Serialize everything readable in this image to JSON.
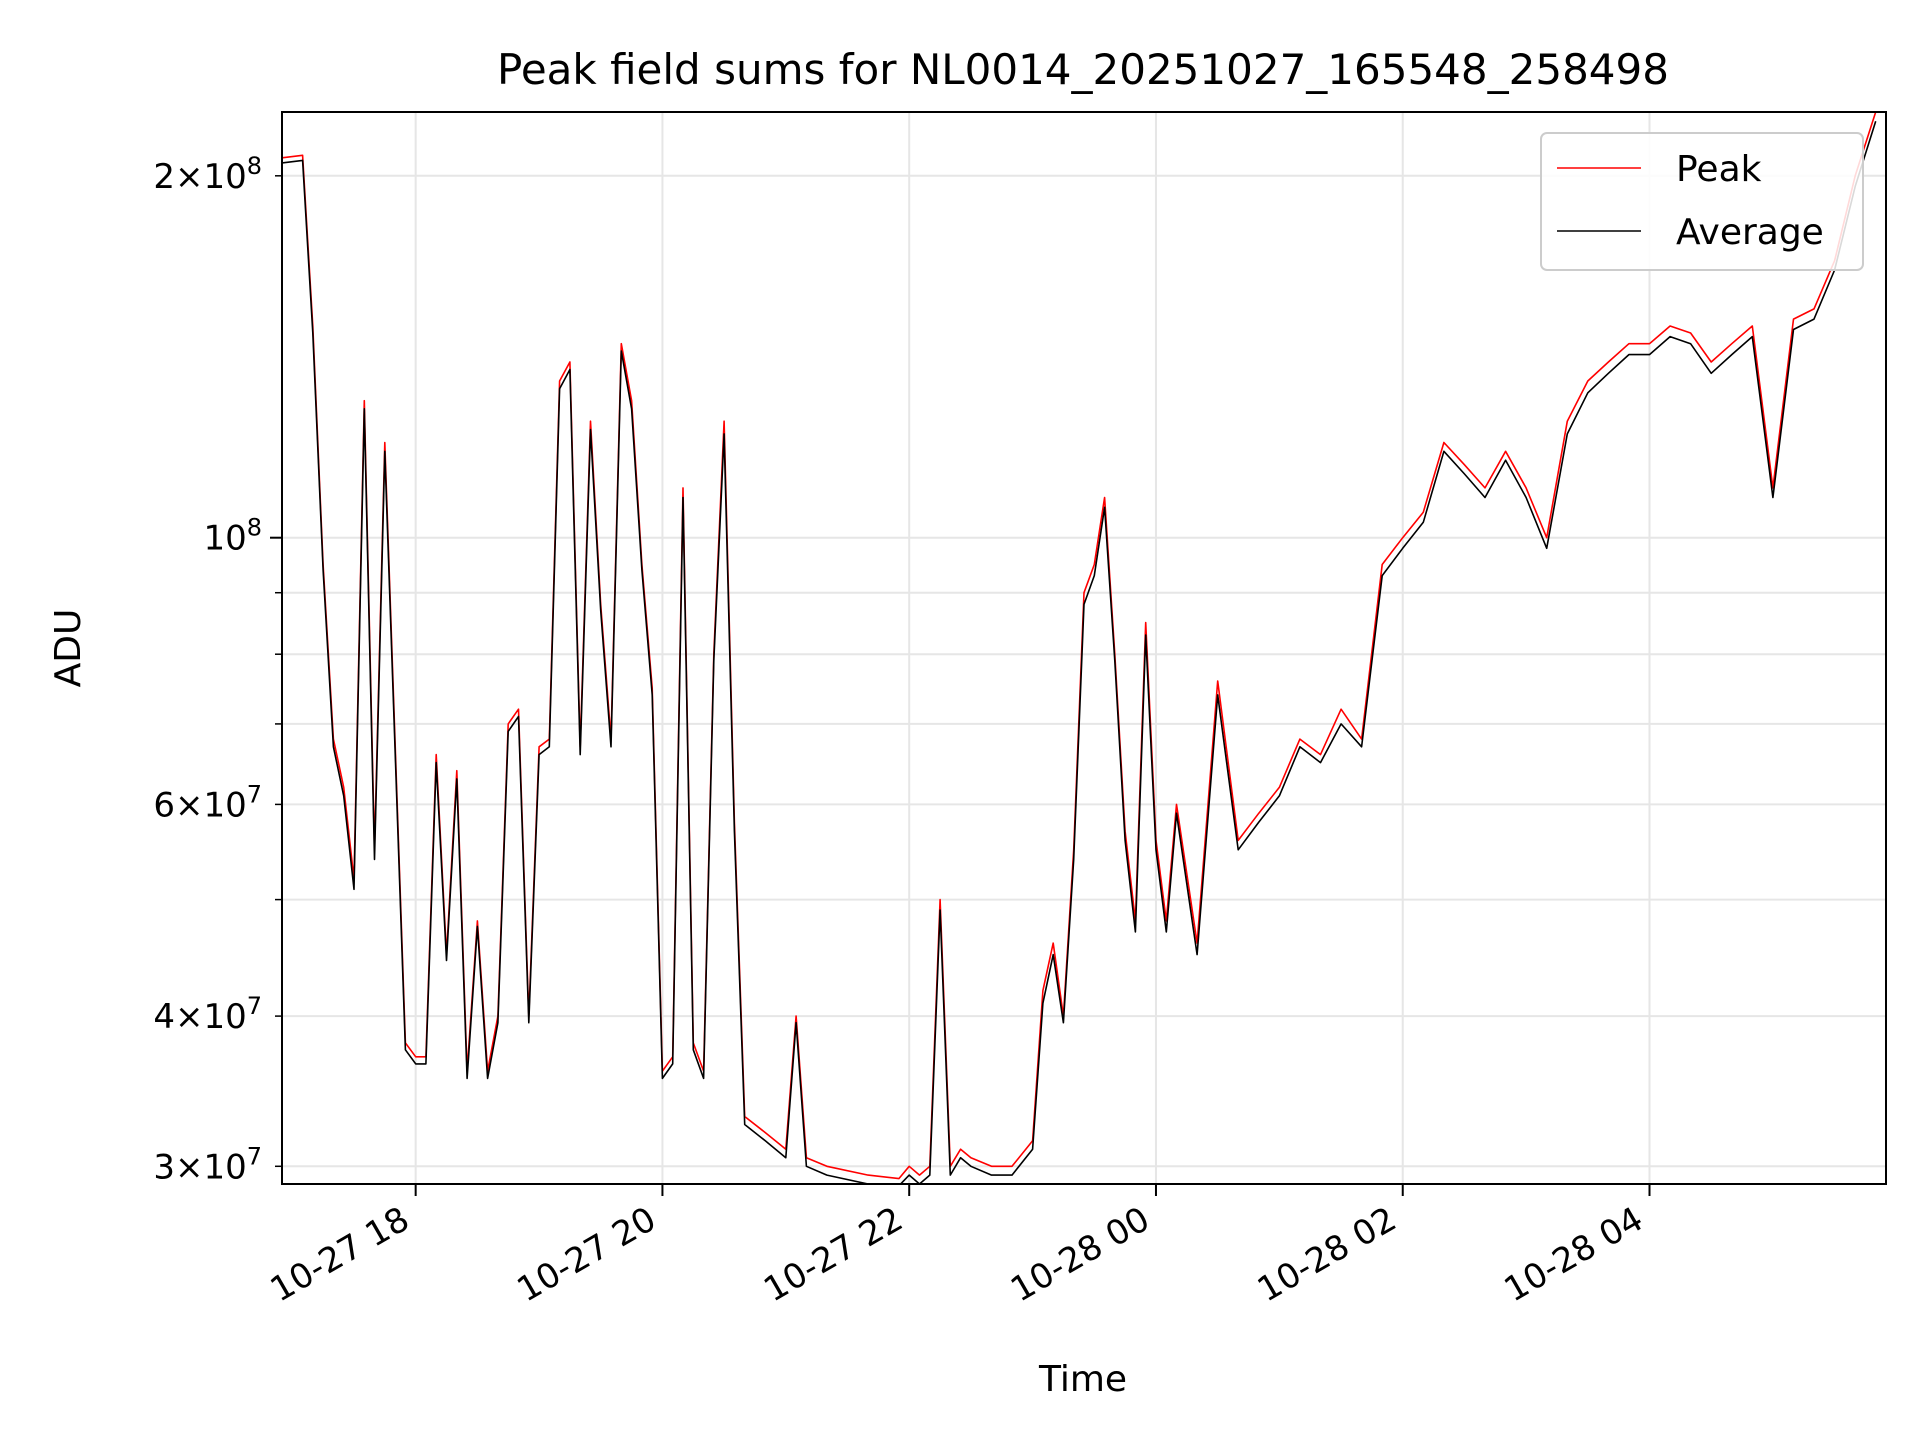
{
  "chart_data": {
    "type": "line",
    "title": "Peak field sums for NL0014_20251027_165548_258498",
    "xlabel": "Time",
    "ylabel": "ADU",
    "y_scale": "log",
    "ylim": [
      29000000,
      226000000
    ],
    "xlim": [
      "2025-10-27 16:55",
      "2025-10-28 05:55"
    ],
    "grid": true,
    "legend_position": "top-right",
    "x_ticks": [
      {
        "value": "2025-10-27 18:00",
        "label": "10-27 18"
      },
      {
        "value": "2025-10-27 20:00",
        "label": "10-27 20"
      },
      {
        "value": "2025-10-27 22:00",
        "label": "10-27 22"
      },
      {
        "value": "2025-10-28 00:00",
        "label": "10-28 00"
      },
      {
        "value": "2025-10-28 02:00",
        "label": "10-28 02"
      },
      {
        "value": "2025-10-28 04:00",
        "label": "10-28 04"
      }
    ],
    "y_ticks_major": [
      {
        "value": 100000000,
        "mantissa": "",
        "exp": "8",
        "label": "10^8"
      }
    ],
    "y_ticks_minor_labeled": [
      {
        "value": 30000000,
        "mantissa": "3",
        "exp": "7",
        "label": "3×10^7"
      },
      {
        "value": 40000000,
        "mantissa": "4",
        "exp": "7",
        "label": "4×10^7"
      },
      {
        "value": 60000000,
        "mantissa": "6",
        "exp": "7",
        "label": "6×10^7"
      },
      {
        "value": 200000000,
        "mantissa": "2",
        "exp": "8",
        "label": "2×10^8"
      }
    ],
    "y_minor_grid": [
      50000000,
      70000000,
      80000000,
      90000000
    ],
    "series": [
      {
        "name": "Peak",
        "color": "#ff0000"
      },
      {
        "name": "Average",
        "color": "#000000"
      }
    ],
    "x": [
      "2025-10-27 16:55",
      "2025-10-27 17:05",
      "2025-10-27 17:10",
      "2025-10-27 17:15",
      "2025-10-27 17:20",
      "2025-10-27 17:25",
      "2025-10-27 17:30",
      "2025-10-27 17:35",
      "2025-10-27 17:40",
      "2025-10-27 17:45",
      "2025-10-27 17:55",
      "2025-10-27 18:00",
      "2025-10-27 18:05",
      "2025-10-27 18:10",
      "2025-10-27 18:15",
      "2025-10-27 18:20",
      "2025-10-27 18:25",
      "2025-10-27 18:30",
      "2025-10-27 18:35",
      "2025-10-27 18:40",
      "2025-10-27 18:45",
      "2025-10-27 18:50",
      "2025-10-27 18:55",
      "2025-10-27 19:00",
      "2025-10-27 19:05",
      "2025-10-27 19:10",
      "2025-10-27 19:15",
      "2025-10-27 19:20",
      "2025-10-27 19:25",
      "2025-10-27 19:30",
      "2025-10-27 19:35",
      "2025-10-27 19:40",
      "2025-10-27 19:45",
      "2025-10-27 19:50",
      "2025-10-27 19:55",
      "2025-10-27 20:00",
      "2025-10-27 20:05",
      "2025-10-27 20:10",
      "2025-10-27 20:15",
      "2025-10-27 20:20",
      "2025-10-27 20:25",
      "2025-10-27 20:30",
      "2025-10-27 20:35",
      "2025-10-27 20:40",
      "2025-10-27 20:50",
      "2025-10-27 21:00",
      "2025-10-27 21:05",
      "2025-10-27 21:10",
      "2025-10-27 21:20",
      "2025-10-27 21:40",
      "2025-10-27 21:55",
      "2025-10-27 22:00",
      "2025-10-27 22:05",
      "2025-10-27 22:10",
      "2025-10-27 22:15",
      "2025-10-27 22:20",
      "2025-10-27 22:25",
      "2025-10-27 22:30",
      "2025-10-27 22:40",
      "2025-10-27 22:50",
      "2025-10-27 23:00",
      "2025-10-27 23:05",
      "2025-10-27 23:10",
      "2025-10-27 23:15",
      "2025-10-27 23:20",
      "2025-10-27 23:25",
      "2025-10-27 23:30",
      "2025-10-27 23:35",
      "2025-10-27 23:40",
      "2025-10-27 23:45",
      "2025-10-27 23:50",
      "2025-10-27 23:55",
      "2025-10-28 00:00",
      "2025-10-28 00:05",
      "2025-10-28 00:10",
      "2025-10-28 00:20",
      "2025-10-28 00:30",
      "2025-10-28 00:40",
      "2025-10-28 00:50",
      "2025-10-28 01:00",
      "2025-10-28 01:10",
      "2025-10-28 01:20",
      "2025-10-28 01:30",
      "2025-10-28 01:40",
      "2025-10-28 01:50",
      "2025-10-28 02:00",
      "2025-10-28 02:10",
      "2025-10-28 02:20",
      "2025-10-28 02:30",
      "2025-10-28 02:40",
      "2025-10-28 02:50",
      "2025-10-28 03:00",
      "2025-10-28 03:10",
      "2025-10-28 03:20",
      "2025-10-28 03:30",
      "2025-10-28 03:40",
      "2025-10-28 03:50",
      "2025-10-28 04:00",
      "2025-10-28 04:10",
      "2025-10-28 04:20",
      "2025-10-28 04:30",
      "2025-10-28 04:40",
      "2025-10-28 04:50",
      "2025-10-28 05:00",
      "2025-10-28 05:10",
      "2025-10-28 05:20",
      "2025-10-28 05:30",
      "2025-10-28 05:40",
      "2025-10-28 05:50",
      "2025-10-28 05:55"
    ],
    "peak": [
      207000000,
      208000000,
      150000000,
      95000000,
      68000000,
      62000000,
      52000000,
      130000000,
      55000000,
      120000000,
      38000000,
      37000000,
      37000000,
      66000000,
      45000000,
      64000000,
      36000000,
      48000000,
      36000000,
      40000000,
      70000000,
      72000000,
      40000000,
      67000000,
      68000000,
      135000000,
      140000000,
      67000000,
      125000000,
      88000000,
      68000000,
      145000000,
      130000000,
      95000000,
      75000000,
      36000000,
      37000000,
      110000000,
      38000000,
      36000000,
      80000000,
      125000000,
      58000000,
      33000000,
      32000000,
      31000000,
      40000000,
      30500000,
      30000000,
      29500000,
      29300000,
      30000000,
      29500000,
      30000000,
      50000000,
      30000000,
      31000000,
      30500000,
      30000000,
      30000000,
      31500000,
      42000000,
      46000000,
      40000000,
      55000000,
      90000000,
      95000000,
      108000000,
      80000000,
      57000000,
      48000000,
      85000000,
      56000000,
      48000000,
      60000000,
      46000000,
      76000000,
      56000000,
      59000000,
      62000000,
      68000000,
      66000000,
      72000000,
      68000000,
      95000000,
      100000000,
      105000000,
      120000000,
      115000000,
      110000000,
      118000000,
      110000000,
      100000000,
      125000000,
      135000000,
      140000000,
      145000000,
      145000000,
      150000000,
      148000000,
      140000000,
      145000000,
      150000000,
      110000000,
      152000000,
      155000000,
      170000000,
      200000000,
      226000000
    ],
    "average": [
      205000000,
      206000000,
      148000000,
      94000000,
      67000000,
      61000000,
      51000000,
      128000000,
      54000000,
      118000000,
      37500000,
      36500000,
      36500000,
      65000000,
      44500000,
      63000000,
      35500000,
      47500000,
      35500000,
      39500000,
      69000000,
      71000000,
      39500000,
      66000000,
      67000000,
      133000000,
      138000000,
      66000000,
      123000000,
      87000000,
      67000000,
      143000000,
      128000000,
      94000000,
      74000000,
      35500000,
      36500000,
      108000000,
      37500000,
      35500000,
      79000000,
      122000000,
      57000000,
      32500000,
      31500000,
      30500000,
      39500000,
      30000000,
      29500000,
      29000000,
      28900000,
      29500000,
      29000000,
      29500000,
      49000000,
      29500000,
      30500000,
      30000000,
      29500000,
      29500000,
      31000000,
      41000000,
      45000000,
      39500000,
      54000000,
      88000000,
      93000000,
      106000000,
      79000000,
      56000000,
      47000000,
      83000000,
      55000000,
      47000000,
      59000000,
      45000000,
      74000000,
      55000000,
      58000000,
      61000000,
      67000000,
      65000000,
      70000000,
      67000000,
      93000000,
      98000000,
      103000000,
      118000000,
      113000000,
      108000000,
      116000000,
      108000000,
      98000000,
      122000000,
      132000000,
      137000000,
      142000000,
      142000000,
      147000000,
      145000000,
      137000000,
      142000000,
      147000000,
      108000000,
      149000000,
      152000000,
      167000000,
      196000000,
      222000000
    ]
  }
}
